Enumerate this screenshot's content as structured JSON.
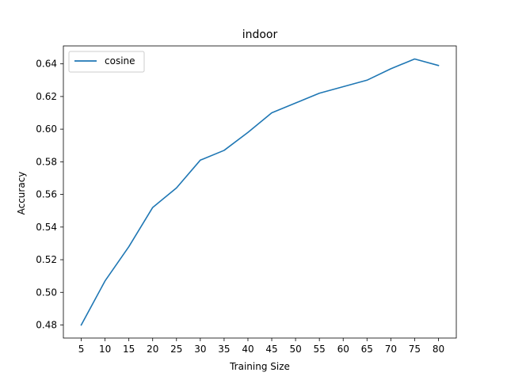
{
  "chart_data": {
    "type": "line",
    "title": "indoor",
    "xlabel": "Training Size",
    "ylabel": "Accuracy",
    "x": [
      5,
      10,
      15,
      20,
      25,
      30,
      35,
      40,
      45,
      50,
      55,
      60,
      65,
      70,
      75,
      80
    ],
    "series": [
      {
        "name": "cosine",
        "color": "#1f77b4",
        "values": [
          0.48,
          0.507,
          0.528,
          0.552,
          0.564,
          0.581,
          0.587,
          0.598,
          0.61,
          0.616,
          0.622,
          0.626,
          0.63,
          0.637,
          0.643,
          0.639
        ]
      }
    ],
    "xticks": [
      "5",
      "10",
      "15",
      "20",
      "25",
      "30",
      "35",
      "40",
      "45",
      "50",
      "55",
      "60",
      "65",
      "70",
      "75",
      "80"
    ],
    "yticks": [
      "0.48",
      "0.50",
      "0.52",
      "0.54",
      "0.56",
      "0.58",
      "0.60",
      "0.62",
      "0.64"
    ],
    "xlim": [
      1.25,
      83.75
    ],
    "ylim": [
      0.472,
      0.651
    ],
    "grid": false,
    "legend": "top-left"
  }
}
